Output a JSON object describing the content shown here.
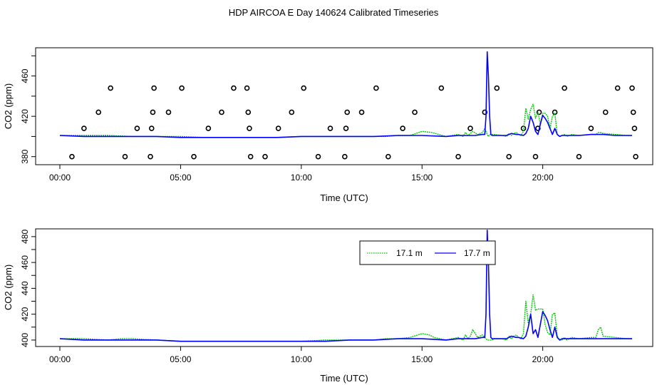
{
  "title": "HDP AIRCOA E  Day 140624  Calibrated Timeseries",
  "colors": {
    "green": "#00c800",
    "blue": "#0000ff",
    "black": "#000000"
  },
  "chart_data": [
    {
      "type": "line",
      "xlabel": "Time (UTC)",
      "ylabel": "CO2 (ppm)",
      "xlim": [
        0,
        24
      ],
      "ylim": [
        372,
        488
      ],
      "x_ticks": [
        0,
        5,
        10,
        15,
        20
      ],
      "x_tick_labels": [
        "00:00",
        "05:00",
        "10:00",
        "15:00",
        "20:00"
      ],
      "y_ticks": [
        380,
        420,
        460
      ],
      "y_tick_labels": [
        "380",
        "420",
        "460"
      ],
      "grid": false,
      "legend": false,
      "series": [
        {
          "color": "#00c800",
          "x": [
            0,
            1,
            2,
            3,
            4,
            5,
            6,
            7,
            8,
            9,
            10,
            11,
            12,
            13,
            13.5,
            14,
            14.5,
            15,
            15.4,
            16,
            16.5,
            16.7,
            16.8,
            16.9,
            17,
            17.1,
            17.3,
            17.5,
            17.6,
            17.7,
            17.75,
            17.8,
            17.85,
            17.9,
            18,
            18.3,
            18.5,
            18.6,
            18.7,
            18.8,
            18.9,
            19,
            19.1,
            19.2,
            19.3,
            19.4,
            19.5,
            19.6,
            19.7,
            19.8,
            19.9,
            20.0,
            20.1,
            20.2,
            20.3,
            20.4,
            20.5,
            20.6,
            20.7,
            20.8,
            20.9,
            21,
            21.2,
            21.5,
            22,
            22.2,
            22.3,
            22.4,
            22.5,
            23,
            23.5,
            23.7
          ],
          "values": [
            401,
            401,
            401,
            400,
            400,
            400,
            399,
            399,
            399,
            399,
            400,
            400,
            400,
            400,
            400,
            401,
            401,
            405,
            404,
            400,
            402,
            400,
            404,
            401,
            403,
            405,
            402,
            404,
            408,
            402,
            400,
            402,
            402,
            402,
            402,
            401,
            400,
            403,
            401,
            403,
            404,
            402,
            401,
            405,
            428,
            417,
            427,
            432,
            418,
            424,
            412,
            423,
            423,
            420,
            408,
            420,
            423,
            402,
            400,
            401,
            402,
            400,
            402,
            401,
            402,
            402,
            404,
            404,
            403,
            402,
            401,
            401
          ]
        },
        {
          "color": "#0000ff",
          "x": [
            0,
            1,
            2,
            3,
            4,
            5,
            6,
            7,
            8,
            9,
            10,
            11,
            12,
            13,
            14,
            15,
            16,
            16.5,
            17,
            17.2,
            17.5,
            17.6,
            17.65,
            17.7,
            17.75,
            17.8,
            17.85,
            17.9,
            18,
            18.5,
            18.7,
            18.9,
            19,
            19.2,
            19.3,
            19.4,
            19.5,
            19.6,
            19.7,
            19.8,
            19.9,
            20.0,
            20.1,
            20.2,
            20.3,
            20.4,
            20.5,
            20.6,
            20.7,
            20.8,
            21,
            21.5,
            22,
            22.5,
            23,
            23.5,
            23.7
          ],
          "values": [
            401,
            400,
            400,
            400,
            400,
            399,
            399,
            399,
            399,
            399,
            400,
            400,
            400,
            400,
            401,
            401,
            400,
            401,
            401,
            401,
            402,
            402,
            420,
            484,
            460,
            420,
            402,
            401,
            401,
            401,
            403,
            402,
            402,
            401,
            403,
            408,
            420,
            414,
            405,
            402,
            412,
            421,
            418,
            414,
            408,
            402,
            408,
            402,
            400,
            401,
            401,
            401,
            402,
            402,
            401,
            401,
            401
          ]
        }
      ],
      "points": {
        "x": [
          0.5,
          1.0,
          1.6,
          2.1,
          2.7,
          3.2,
          3.75,
          3.8,
          3.85,
          3.9,
          4.5,
          5.05,
          5.55,
          6.15,
          6.7,
          7.2,
          7.75,
          7.8,
          7.85,
          7.9,
          8.5,
          9.05,
          9.6,
          10.1,
          10.7,
          11.2,
          11.8,
          11.85,
          11.9,
          12.5,
          13.1,
          13.6,
          14.2,
          14.7,
          15.8,
          16.5,
          17.0,
          17.6,
          18.1,
          18.6,
          19.2,
          19.7,
          19.8,
          19.85,
          20.5,
          20.9,
          21.5,
          22.0,
          22.6,
          23.1,
          23.7,
          23.75,
          23.8,
          23.85
        ],
        "values": [
          380,
          408,
          424,
          448,
          380,
          408,
          380,
          408,
          424,
          448,
          424,
          448,
          380,
          408,
          424,
          448,
          448,
          424,
          408,
          380,
          380,
          408,
          424,
          448,
          380,
          408,
          380,
          408,
          424,
          424,
          448,
          380,
          408,
          424,
          448,
          380,
          408,
          424,
          448,
          380,
          408,
          380,
          408,
          424,
          424,
          448,
          380,
          408,
          424,
          448,
          448,
          424,
          408,
          380
        ]
      }
    },
    {
      "type": "line",
      "xlabel": "Time (UTC)",
      "ylabel": "CO2 (ppm)",
      "xlim": [
        0,
        24
      ],
      "ylim": [
        395,
        486
      ],
      "x_ticks": [
        0,
        5,
        10,
        15,
        20
      ],
      "x_tick_labels": [
        "00:00",
        "05:00",
        "10:00",
        "15:00",
        "20:00"
      ],
      "y_ticks": [
        400,
        420,
        440,
        460,
        480
      ],
      "y_tick_labels": [
        "400",
        "420",
        "440",
        "460",
        "480"
      ],
      "grid": false,
      "legend": true,
      "legend_position": "top-center",
      "series": [
        {
          "name": "17.1 m",
          "color": "#00c800",
          "x": [
            0,
            1,
            2,
            2.5,
            3,
            4,
            5,
            6,
            7,
            8,
            9,
            10,
            11,
            12,
            13,
            13.5,
            14,
            14.5,
            15,
            15.3,
            15.5,
            16,
            16.5,
            16.7,
            16.8,
            16.9,
            17,
            17.1,
            17.3,
            17.5,
            17.6,
            17.7,
            17.75,
            17.8,
            17.85,
            17.9,
            18,
            18.3,
            18.5,
            18.6,
            18.7,
            18.8,
            18.9,
            19,
            19.1,
            19.2,
            19.3,
            19.4,
            19.5,
            19.6,
            19.7,
            19.8,
            19.9,
            20.0,
            20.1,
            20.2,
            20.3,
            20.4,
            20.5,
            20.6,
            20.7,
            20.8,
            20.9,
            21,
            21.2,
            21.5,
            22,
            22.2,
            22.3,
            22.4,
            22.5,
            23,
            23.5,
            23.7
          ],
          "values": [
            401,
            401,
            400,
            401,
            401,
            400,
            399,
            399,
            399,
            399,
            399,
            399,
            400,
            400,
            400,
            401,
            401,
            402,
            405,
            404,
            402,
            400,
            402,
            400,
            404,
            401,
            403,
            408,
            402,
            404,
            402,
            400,
            400,
            400,
            400,
            400,
            401,
            401,
            400,
            403,
            401,
            403,
            404,
            402,
            401,
            405,
            430,
            413,
            420,
            435,
            423,
            424,
            424,
            424,
            412,
            406,
            404,
            420,
            421,
            403,
            400,
            400,
            402,
            400,
            402,
            401,
            402,
            402,
            408,
            410,
            403,
            402,
            401,
            401
          ]
        },
        {
          "name": "17.7 m",
          "color": "#0000ff",
          "x": [
            0,
            1,
            2,
            3,
            4,
            5,
            6,
            7,
            8,
            9,
            10,
            11,
            12,
            13,
            14,
            15,
            16,
            16.5,
            17,
            17.2,
            17.5,
            17.6,
            17.65,
            17.7,
            17.75,
            17.8,
            17.85,
            17.9,
            18,
            18.5,
            18.7,
            18.9,
            19,
            19.2,
            19.3,
            19.4,
            19.5,
            19.6,
            19.7,
            19.8,
            19.9,
            20.0,
            20.1,
            20.2,
            20.3,
            20.4,
            20.5,
            20.6,
            20.7,
            20.8,
            21,
            21.5,
            22,
            22.5,
            23,
            23.5,
            23.7
          ],
          "values": [
            401,
            400,
            400,
            400,
            400,
            399,
            399,
            399,
            399,
            399,
            399,
            399,
            400,
            400,
            401,
            401,
            400,
            401,
            401,
            401,
            402,
            402,
            420,
            485,
            460,
            420,
            402,
            401,
            401,
            401,
            403,
            402,
            402,
            401,
            403,
            410,
            420,
            405,
            408,
            402,
            412,
            422,
            419,
            415,
            408,
            402,
            410,
            402,
            400,
            401,
            401,
            401,
            401,
            401,
            401,
            401,
            401
          ]
        }
      ]
    }
  ]
}
